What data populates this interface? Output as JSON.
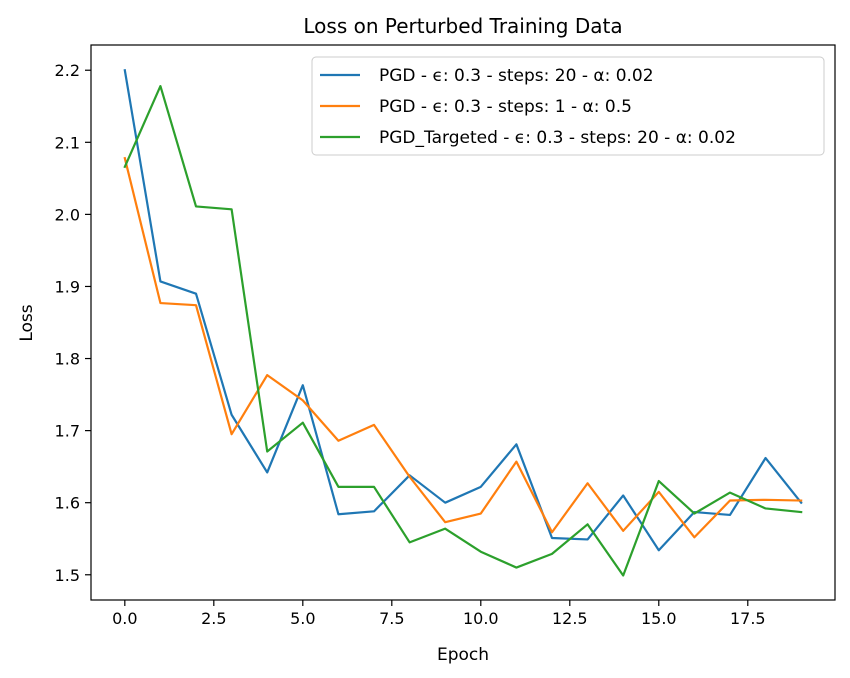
{
  "chart_data": {
    "type": "line",
    "title": "Loss on Perturbed Training Data",
    "xlabel": "Epoch",
    "ylabel": "Loss",
    "xlim": [
      -0.95,
      19.95
    ],
    "ylim": [
      1.465,
      2.235
    ],
    "xticks": [
      0.0,
      2.5,
      5.0,
      7.5,
      10.0,
      12.5,
      15.0,
      17.5
    ],
    "xtick_labels": [
      "0.0",
      "2.5",
      "5.0",
      "7.5",
      "10.0",
      "12.5",
      "15.0",
      "17.5"
    ],
    "yticks": [
      1.5,
      1.6,
      1.7,
      1.8,
      1.9,
      2.0,
      2.1,
      2.2
    ],
    "ytick_labels": [
      "1.5",
      "1.6",
      "1.7",
      "1.8",
      "1.9",
      "2.0",
      "2.1",
      "2.2"
    ],
    "grid": false,
    "legend_position": "top-right",
    "x": [
      0,
      1,
      2,
      3,
      4,
      5,
      6,
      7,
      8,
      9,
      10,
      11,
      12,
      13,
      14,
      15,
      16,
      17,
      18,
      19
    ],
    "series": [
      {
        "name": "PGD - ϵ: 0.3 - steps: 20 - α: 0.02",
        "color": "#1f77b4",
        "values": [
          2.2,
          1.907,
          1.89,
          1.722,
          1.642,
          1.763,
          1.584,
          1.588,
          1.638,
          1.6,
          1.622,
          1.681,
          1.551,
          1.549,
          1.61,
          1.534,
          1.587,
          1.583,
          1.662,
          1.6
        ]
      },
      {
        "name": "PGD - ϵ: 0.3 - steps: 1 - α: 0.5",
        "color": "#ff7f0e",
        "values": [
          2.078,
          1.877,
          1.874,
          1.695,
          1.777,
          1.742,
          1.686,
          1.708,
          1.636,
          1.573,
          1.585,
          1.657,
          1.559,
          1.627,
          1.561,
          1.615,
          1.552,
          1.603,
          1.604,
          1.603
        ]
      },
      {
        "name": "PGD_Targeted - ϵ: 0.3 - steps: 20 - α: 0.02",
        "color": "#2ca02c",
        "values": [
          2.066,
          2.178,
          2.011,
          2.007,
          1.671,
          1.711,
          1.622,
          1.622,
          1.545,
          1.564,
          1.532,
          1.51,
          1.529,
          1.57,
          1.499,
          1.63,
          1.585,
          1.614,
          1.592,
          1.587
        ]
      }
    ]
  }
}
